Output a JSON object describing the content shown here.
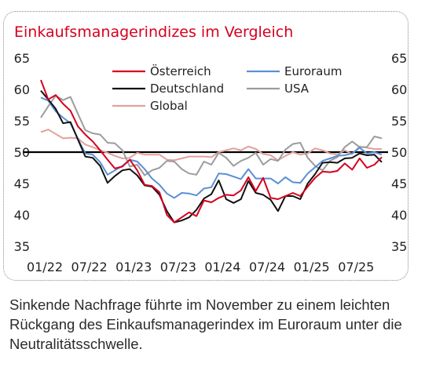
{
  "title": "Einkaufsmanagerindizes im Vergleich",
  "caption": "Sinkende Nachfrage führte im November zu einem leichten Rückgang des Einkaufsmanagerindex im Euroraum unter die Neutralitätsschwelle.",
  "chart_data": {
    "type": "line",
    "title": "Einkaufsmanagerindizes im Vergleich",
    "ylim": [
      35,
      65
    ],
    "yticks": [
      35,
      40,
      45,
      50,
      55,
      60,
      65
    ],
    "xticks": [
      "01/22",
      "07/22",
      "01/23",
      "07/23",
      "01/24",
      "07/24",
      "01/25",
      "07/25"
    ],
    "x": [
      "01/22",
      "02/22",
      "03/22",
      "04/22",
      "05/22",
      "06/22",
      "07/22",
      "08/22",
      "09/22",
      "10/22",
      "11/22",
      "12/22",
      "01/23",
      "02/23",
      "03/23",
      "04/23",
      "05/23",
      "06/23",
      "07/23",
      "08/23",
      "09/23",
      "10/23",
      "11/23",
      "12/23",
      "01/24",
      "02/24",
      "03/24",
      "04/24",
      "05/24",
      "06/24",
      "07/24",
      "08/24",
      "09/24",
      "10/24",
      "11/24",
      "12/24",
      "01/25",
      "02/25",
      "03/25",
      "04/25",
      "05/25",
      "06/25",
      "07/25",
      "08/25",
      "09/25",
      "10/25",
      "11/25"
    ],
    "reference_line": 50,
    "grid": false,
    "legend_position": "top",
    "series": [
      {
        "name": "Österreich",
        "color": "#d7001e",
        "values": [
          61.5,
          58.4,
          59.1,
          57.7,
          56.6,
          54.1,
          52.8,
          51.7,
          50.3,
          48.8,
          47.4,
          47.7,
          48.8,
          47.1,
          44.8,
          44.6,
          43.6,
          40.0,
          38.8,
          39.6,
          40.4,
          39.8,
          42.3,
          42.0,
          42.7,
          43.2,
          43.1,
          43.9,
          46.0,
          43.8,
          45.9,
          42.7,
          42.5,
          43.0,
          43.5,
          43.0,
          44.5,
          45.9,
          46.9,
          46.8,
          47.0,
          48.2,
          47.2,
          49.0,
          47.5,
          48.0,
          49.2
        ]
      },
      {
        "name": "Euroraum",
        "color": "#5b8fd6",
        "values": [
          58.7,
          58.2,
          56.5,
          55.5,
          54.6,
          52.1,
          49.8,
          49.6,
          48.4,
          46.4,
          47.1,
          47.8,
          48.8,
          48.5,
          47.3,
          45.8,
          44.8,
          43.4,
          42.7,
          43.5,
          43.4,
          43.1,
          44.2,
          44.4,
          46.6,
          46.5,
          46.1,
          45.7,
          47.3,
          45.8,
          45.8,
          45.8,
          45.0,
          46.0,
          45.2,
          45.1,
          46.6,
          47.6,
          48.6,
          49.0,
          49.4,
          49.5,
          49.8,
          50.7,
          49.8,
          50.0,
          49.6
        ]
      },
      {
        "name": "Deutschland",
        "color": "#111111",
        "values": [
          59.8,
          58.4,
          56.9,
          54.6,
          54.8,
          52.0,
          49.3,
          49.1,
          47.8,
          45.1,
          46.2,
          47.1,
          47.3,
          46.3,
          44.7,
          44.5,
          43.2,
          40.6,
          38.8,
          39.1,
          39.6,
          40.8,
          42.6,
          43.3,
          45.5,
          42.5,
          41.9,
          42.5,
          45.4,
          43.5,
          43.2,
          42.4,
          40.6,
          43.0,
          43.0,
          42.5,
          45.0,
          46.5,
          48.3,
          48.4,
          48.3,
          49.0,
          49.1,
          49.8,
          49.5,
          49.6,
          48.4
        ]
      },
      {
        "name": "USA",
        "color": "#9c9c9c",
        "values": [
          55.5,
          57.3,
          59.0,
          58.3,
          58.8,
          56.1,
          53.5,
          53.0,
          52.8,
          51.5,
          51.4,
          50.3,
          47.7,
          48.0,
          46.3,
          47.1,
          47.5,
          48.6,
          48.5,
          47.3,
          46.6,
          46.4,
          48.5,
          48.0,
          49.9,
          49.1,
          47.8,
          48.6,
          49.1,
          49.9,
          48.0,
          48.9,
          48.6,
          50.4,
          51.3,
          51.5,
          49.1,
          47.8,
          47.1,
          48.6,
          49.2,
          50.8,
          51.7,
          50.8,
          50.8,
          52.5,
          52.2
        ]
      },
      {
        "name": "Global",
        "color": "#e3a09e",
        "values": [
          53.2,
          53.6,
          52.9,
          52.2,
          52.3,
          52.2,
          51.2,
          50.8,
          50.3,
          49.9,
          49.4,
          49.0,
          49.1,
          49.9,
          49.6,
          49.6,
          49.6,
          48.8,
          48.7,
          49.0,
          49.3,
          49.3,
          49.3,
          49.2,
          50.0,
          50.3,
          50.6,
          50.3,
          50.9,
          50.5,
          49.7,
          49.5,
          48.7,
          49.4,
          50.0,
          49.6,
          49.8,
          50.6,
          50.3,
          49.8,
          49.6,
          50.3,
          49.7,
          50.9,
          50.7,
          50.5,
          50.5
        ]
      }
    ],
    "legend": {
      "row1": [
        "Österreich",
        "Euroraum"
      ],
      "row2": [
        "Deutschland",
        "USA"
      ],
      "row3": [
        "Global"
      ]
    }
  }
}
